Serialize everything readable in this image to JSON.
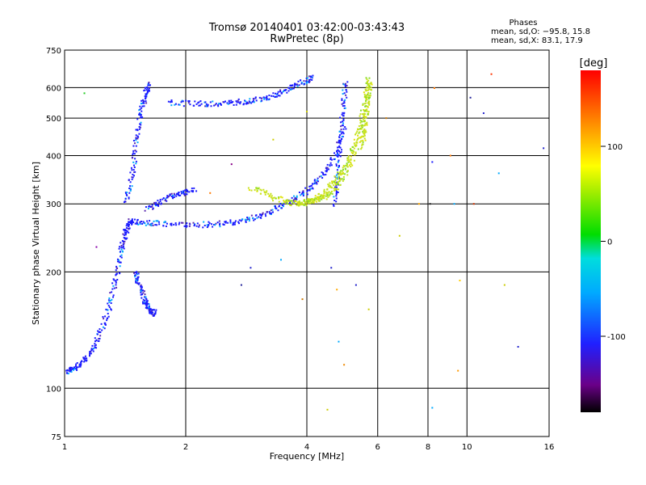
{
  "chart_data": {
    "type": "scatter",
    "title": "Tromsø 20140401 03:42:00-03:43:43",
    "subtitle": "RwPretec (8p)",
    "xlabel": "Frequency [MHz]",
    "ylabel": "Stationary phase Virtual Height [km]",
    "x_scale": "log",
    "y_scale": "log",
    "xlim": [
      1,
      16
    ],
    "ylim": [
      75,
      750
    ],
    "x_ticks": [
      1,
      2,
      4,
      6,
      8,
      10,
      16
    ],
    "x_tick_labels": [
      "1",
      "2",
      "4",
      "6",
      "8",
      "10",
      "16"
    ],
    "y_ticks": [
      75,
      100,
      200,
      300,
      400,
      500,
      600,
      750
    ],
    "y_tick_labels": [
      "75",
      "100",
      "200",
      "300",
      "400",
      "500",
      "600",
      "750"
    ],
    "grid": true,
    "phase_header": {
      "title": "Phases",
      "line_o": "mean, sd,O: −95.8, 15.8",
      "line_x": "mean, sd,X:  83.1, 17.9"
    },
    "colorbar": {
      "label": "[deg]",
      "range": [
        -180,
        180
      ],
      "ticks": [
        100,
        0,
        -100
      ],
      "tick_labels": [
        "100",
        "0",
        "-100"
      ]
    },
    "series": [
      {
        "mode": "O",
        "color_value_deg": -95.8,
        "color": "#1a1aff",
        "traces": [
          {
            "x": [
              1.0,
              1.03,
              1.06,
              1.1,
              1.14,
              1.18,
              1.22,
              1.26,
              1.3,
              1.33,
              1.36,
              1.38,
              1.4,
              1.42,
              1.44,
              1.46
            ],
            "y": [
              110,
              111,
              113,
              116,
              120,
              128,
              138,
              150,
              165,
              185,
              205,
              225,
              240,
              255,
              265,
              270
            ]
          },
          {
            "x": [
              1.46,
              1.55,
              1.65,
              1.8,
              2.0,
              2.2,
              2.4,
              2.6,
              2.8,
              3.0,
              3.2,
              3.4,
              3.6,
              3.8,
              4.0,
              4.2,
              4.4,
              4.6,
              4.8,
              4.95
            ],
            "y": [
              270,
              268,
              267,
              266,
              265,
              265,
              266,
              268,
              272,
              278,
              285,
              293,
              302,
              312,
              324,
              340,
              360,
              385,
              420,
              470
            ]
          },
          {
            "x": [
              1.42,
              1.45,
              1.48,
              1.5,
              1.52,
              1.55,
              1.58,
              1.6,
              1.62
            ],
            "y": [
              300,
              330,
              370,
              420,
              470,
              520,
              560,
              590,
              610
            ]
          },
          {
            "x": [
              1.5,
              1.52,
              1.55,
              1.58,
              1.6,
              1.62,
              1.65,
              1.68
            ],
            "y": [
              200,
              190,
              180,
              170,
              165,
              160,
              158,
              156
            ]
          },
          {
            "x": [
              1.8,
              2.0,
              2.2,
              2.4,
              2.6,
              2.8,
              3.0,
              3.2,
              3.4,
              3.6,
              3.8,
              4.0,
              4.1
            ],
            "y": [
              548,
              546,
              545,
              546,
              548,
              552,
              558,
              567,
              580,
              596,
              612,
              628,
              640
            ]
          },
          {
            "x": [
              4.7,
              4.75,
              4.8,
              4.85,
              4.9,
              4.95,
              5.0
            ],
            "y": [
              300,
              340,
              390,
              440,
              500,
              560,
              620
            ]
          },
          {
            "x": [
              1.6,
              1.7,
              1.8,
              1.9,
              2.0,
              2.1
            ],
            "y": [
              290,
              300,
              310,
              318,
              322,
              325
            ]
          }
        ]
      },
      {
        "mode": "X",
        "color_value_deg": 83.1,
        "color": "#c8e21e",
        "traces": [
          {
            "x": [
              2.9,
              3.1,
              3.3,
              3.5,
              3.7,
              3.9,
              4.1,
              4.3,
              4.5,
              4.7,
              4.9,
              5.1,
              5.3,
              5.45,
              5.55,
              5.62,
              5.68
            ],
            "y": [
              330,
              322,
              312,
              305,
              302,
              302,
              306,
              314,
              326,
              343,
              365,
              395,
              435,
              480,
              530,
              580,
              630
            ]
          },
          {
            "x": [
              3.8,
              4.0,
              4.2,
              4.4,
              4.6,
              4.8,
              5.0,
              5.2,
              5.4,
              5.6
            ],
            "y": [
              300,
              302,
              306,
              312,
              322,
              338,
              360,
              392,
              440,
              520
            ]
          },
          {
            "x": [
              5.5,
              5.55,
              5.6,
              5.65,
              5.7,
              5.75
            ],
            "y": [
              420,
              460,
              500,
              540,
              580,
              620
            ]
          }
        ]
      },
      {
        "mode": "noise",
        "color": "mixed",
        "points": [
          {
            "x": 1.12,
            "y": 580,
            "c": "#22cc22"
          },
          {
            "x": 1.2,
            "y": 232,
            "c": "#8800aa"
          },
          {
            "x": 2.3,
            "y": 320,
            "c": "#ff7700"
          },
          {
            "x": 2.6,
            "y": 380,
            "c": "#880088"
          },
          {
            "x": 2.75,
            "y": 185,
            "c": "#222299"
          },
          {
            "x": 2.9,
            "y": 205,
            "c": "#2222cc"
          },
          {
            "x": 3.3,
            "y": 440,
            "c": "#cccc00"
          },
          {
            "x": 3.45,
            "y": 215,
            "c": "#00aaff"
          },
          {
            "x": 3.9,
            "y": 170,
            "c": "#cc7700"
          },
          {
            "x": 4.0,
            "y": 520,
            "c": "#cccc00"
          },
          {
            "x": 4.6,
            "y": 205,
            "c": "#2222cc"
          },
          {
            "x": 4.75,
            "y": 180,
            "c": "#ffaa00"
          },
          {
            "x": 4.8,
            "y": 132,
            "c": "#00aaff"
          },
          {
            "x": 4.95,
            "y": 115,
            "c": "#ee8800"
          },
          {
            "x": 5.3,
            "y": 185,
            "c": "#2222cc"
          },
          {
            "x": 5.7,
            "y": 160,
            "c": "#cccc00"
          },
          {
            "x": 6.3,
            "y": 500,
            "c": "#cc7700"
          },
          {
            "x": 6.8,
            "y": 248,
            "c": "#cccc00"
          },
          {
            "x": 7.6,
            "y": 300,
            "c": "#ffaa00"
          },
          {
            "x": 8.1,
            "y": 300,
            "c": "#222222"
          },
          {
            "x": 8.3,
            "y": 598,
            "c": "#ff7700"
          },
          {
            "x": 8.2,
            "y": 385,
            "c": "#1a1aff"
          },
          {
            "x": 9.1,
            "y": 400,
            "c": "#ff7700"
          },
          {
            "x": 9.3,
            "y": 300,
            "c": "#00aaff"
          },
          {
            "x": 9.6,
            "y": 190,
            "c": "#ffcc00"
          },
          {
            "x": 9.5,
            "y": 111,
            "c": "#ff9900"
          },
          {
            "x": 10.2,
            "y": 565,
            "c": "#222299"
          },
          {
            "x": 10.4,
            "y": 300,
            "c": "#cc3300"
          },
          {
            "x": 11.0,
            "y": 515,
            "c": "#2222cc"
          },
          {
            "x": 11.5,
            "y": 650,
            "c": "#ff3300"
          },
          {
            "x": 12.0,
            "y": 360,
            "c": "#00aaff"
          },
          {
            "x": 12.4,
            "y": 185,
            "c": "#cccc00"
          },
          {
            "x": 13.4,
            "y": 128,
            "c": "#2222cc"
          },
          {
            "x": 15.5,
            "y": 418,
            "c": "#2222cc"
          },
          {
            "x": 4.5,
            "y": 88,
            "c": "#cccc00"
          },
          {
            "x": 8.2,
            "y": 89,
            "c": "#00aaff"
          }
        ]
      }
    ]
  }
}
